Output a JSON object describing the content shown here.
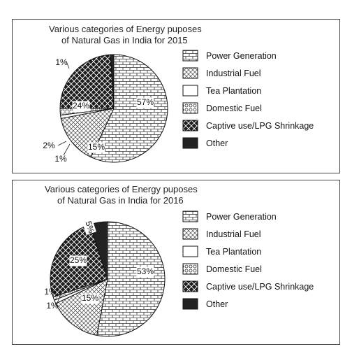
{
  "chart_data": [
    {
      "type": "pie",
      "title": [
        "Various categories of Energy puposes",
        "of Natural Gas in India for 2015"
      ],
      "categories": [
        "Power Generation",
        "Industrial Fuel",
        "Tea Plantation",
        "Domestic Fuel",
        "Captive use/LPG Shrinkage",
        "Other"
      ],
      "values": [
        57,
        15,
        1,
        2,
        24,
        1
      ],
      "labels": [
        "57%",
        "15%",
        "1%",
        "2%",
        "24%",
        "1%"
      ],
      "legend_position": "right"
    },
    {
      "type": "pie",
      "title": [
        "Various categories of Energy puposes",
        "of Natural Gas in India for 2016"
      ],
      "categories": [
        "Power Generation",
        "Industrial Fuel",
        "Tea Plantation",
        "Domestic Fuel",
        "Captive use/LPG Shrinkage",
        "Other"
      ],
      "values": [
        53,
        15,
        1,
        1,
        25,
        5
      ],
      "labels": [
        "53%",
        "15%",
        "1%",
        "1%",
        "25%",
        "5%"
      ],
      "legend_position": "right"
    }
  ]
}
